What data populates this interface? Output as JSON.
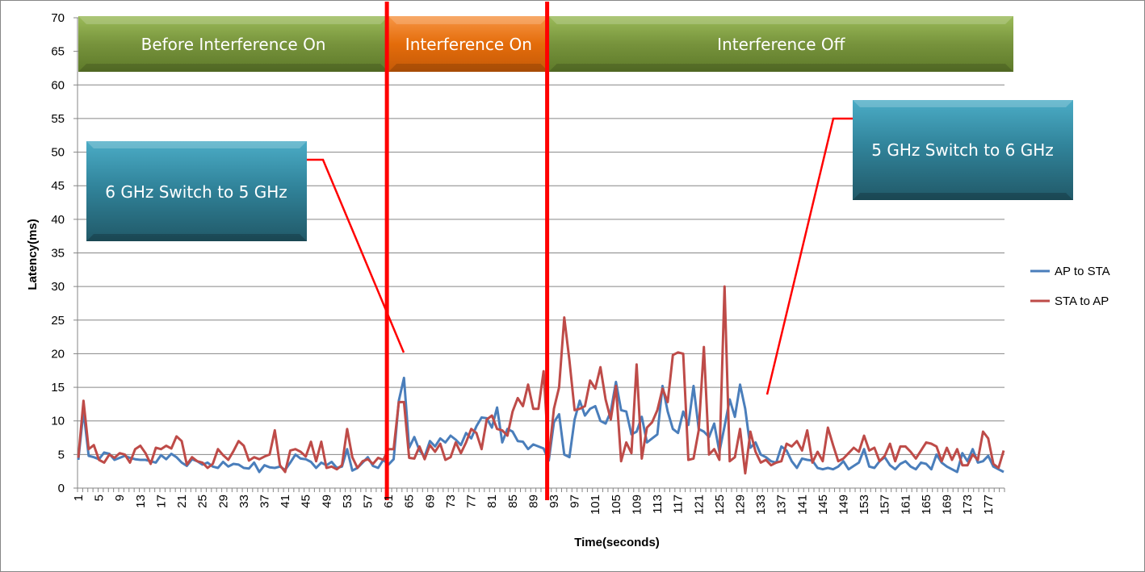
{
  "chart_data": {
    "type": "line",
    "xlabel": "Time(seconds)",
    "ylabel": "Latency(ms)",
    "ylim": [
      0,
      70
    ],
    "yticks": [
      0,
      5,
      10,
      15,
      20,
      25,
      30,
      35,
      40,
      45,
      50,
      55,
      60,
      65,
      70
    ],
    "x_start": 1,
    "x_end": 180,
    "x_tick_step": 4,
    "grid": true,
    "legend_position": "right",
    "series": [
      {
        "name": "AP to STA",
        "color": "#4a7ebb",
        "values": [
          4.2,
          11.5,
          4.8,
          4.6,
          4.3,
          5.3,
          5.1,
          4.2,
          4.5,
          4.8,
          4.5,
          4.3,
          4.2,
          4.2,
          4.0,
          3.8,
          4.9,
          4.3,
          5.1,
          4.6,
          3.8,
          3.3,
          4.3,
          4.0,
          3.5,
          3.8,
          3.2,
          3.0,
          3.9,
          3.2,
          3.6,
          3.5,
          3.0,
          2.9,
          3.8,
          2.4,
          3.4,
          3.1,
          3.0,
          3.2,
          2.7,
          3.8,
          5.0,
          4.4,
          4.3,
          3.9,
          3.0,
          3.8,
          3.4,
          3.9,
          3.0,
          3.2,
          5.8,
          2.6,
          3.0,
          3.8,
          4.6,
          3.3,
          3.0,
          4.2,
          3.5,
          4.3,
          13.0,
          16.4,
          6.0,
          7.6,
          5.6,
          4.7,
          7.0,
          6.2,
          7.4,
          6.8,
          7.8,
          7.2,
          6.4,
          8.2,
          7.4,
          9.2,
          10.5,
          10.4,
          9.0,
          12.0,
          6.8,
          8.8,
          8.4,
          7.0,
          6.9,
          5.8,
          6.5,
          6.2,
          5.9,
          4.1,
          9.8,
          11.0,
          5.0,
          4.6,
          10.2,
          13.0,
          10.8,
          11.8,
          12.2,
          10.0,
          9.6,
          11.4,
          15.8,
          11.6,
          11.4,
          8.0,
          8.4,
          10.6,
          6.8,
          7.4,
          8.0,
          15.2,
          11.4,
          8.8,
          8.2,
          11.4,
          9.4,
          15.2,
          8.8,
          8.4,
          7.6,
          9.6,
          5.4,
          9.2,
          13.2,
          10.6,
          15.4,
          11.8,
          6.0,
          6.8,
          5.0,
          4.6,
          4.0,
          3.8,
          6.2,
          5.6,
          4.0,
          3.0,
          4.4,
          4.2,
          4.1,
          3.0,
          2.8,
          3.0,
          2.8,
          3.2,
          4.0,
          2.8,
          3.3,
          3.8,
          5.8,
          3.2,
          3.0,
          4.0,
          4.6,
          3.4,
          2.8,
          3.6,
          4.0,
          3.2,
          2.8,
          3.8,
          3.6,
          2.8,
          5.0,
          3.8,
          3.2,
          2.8,
          2.4,
          5.2,
          4.0,
          5.8,
          3.8,
          4.0,
          4.8,
          3.2,
          2.8,
          2.4
        ],
        "type": "line"
      },
      {
        "name": "STA to AP",
        "color": "#be4b48",
        "values": [
          4.5,
          13.0,
          5.8,
          6.4,
          4.2,
          3.8,
          5.0,
          4.5,
          5.2,
          5.0,
          3.8,
          5.8,
          6.3,
          5.2,
          3.6,
          6.0,
          5.8,
          6.3,
          5.9,
          7.7,
          7.0,
          3.5,
          4.6,
          4.0,
          3.8,
          3.0,
          3.6,
          5.8,
          4.9,
          4.2,
          5.5,
          7.0,
          6.3,
          4.1,
          4.6,
          4.3,
          4.7,
          5.0,
          8.6,
          3.4,
          2.4,
          5.6,
          5.8,
          5.4,
          4.7,
          6.9,
          4.0,
          6.9,
          3.0,
          3.2,
          2.8,
          3.4,
          8.8,
          4.6,
          3.0,
          4.0,
          4.3,
          3.6,
          4.5,
          4.2,
          5.8,
          5.8,
          12.8,
          12.8,
          4.5,
          4.4,
          6.2,
          4.3,
          6.4,
          5.4,
          6.6,
          4.2,
          4.6,
          6.8,
          5.2,
          6.8,
          8.8,
          8.2,
          5.8,
          10.2,
          10.8,
          8.8,
          8.6,
          7.8,
          11.4,
          13.4,
          12.2,
          15.4,
          11.8,
          11.8,
          17.4,
          4.6,
          11.8,
          15.0,
          25.4,
          19.0,
          11.6,
          11.8,
          12.2,
          16.0,
          14.8,
          18.0,
          13.2,
          10.2,
          15.2,
          4.0,
          6.8,
          5.2,
          18.4,
          4.4,
          9.0,
          9.8,
          11.6,
          14.8,
          12.8,
          19.8,
          20.2,
          20.0,
          4.2,
          4.4,
          8.6,
          21.0,
          5.0,
          5.8,
          4.2,
          30.0,
          4.0,
          4.6,
          8.8,
          2.2,
          8.4,
          5.4,
          3.8,
          4.2,
          3.4,
          3.8,
          4.0,
          6.6,
          6.2,
          7.0,
          5.6,
          8.6,
          3.8,
          5.4,
          4.0,
          9.0,
          6.4,
          4.0,
          4.4,
          5.2,
          6.0,
          5.4,
          7.8,
          5.6,
          6.0,
          4.0,
          4.8,
          6.6,
          4.0,
          6.2,
          6.2,
          5.4,
          4.4,
          5.6,
          6.8,
          6.6,
          6.2,
          4.0,
          6.0,
          4.2,
          5.8,
          3.4,
          3.4,
          5.0,
          4.2,
          8.4,
          7.4,
          3.6,
          3.0,
          5.6
        ],
        "type": "line"
      }
    ],
    "vertical_markers": [
      61,
      92
    ],
    "phase_bands": [
      {
        "label": "Before Interference On",
        "from": 1,
        "to": 61,
        "color": "#77933c"
      },
      {
        "label": "Interference On",
        "from": 61,
        "to": 92,
        "color": "#e46c0a"
      },
      {
        "label": "Interference Off",
        "from": 92,
        "to": 180,
        "color": "#77933c"
      }
    ],
    "callouts": [
      {
        "label": "6 GHz Switch to 5 GHz",
        "color": "#31849b"
      },
      {
        "label": "5 GHz Switch to 6 GHz",
        "color": "#31849b"
      }
    ]
  }
}
